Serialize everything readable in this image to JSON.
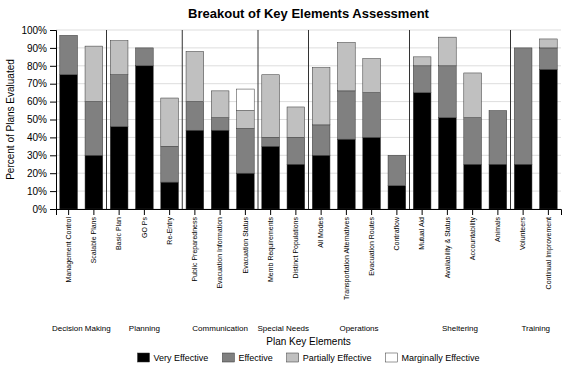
{
  "chart_data": {
    "type": "bar",
    "stacked": true,
    "title": "Breakout of Key Elements Assessment",
    "xlabel": "Plan Key Elements",
    "ylabel": "Percent of Plans Evaluated",
    "categories": [
      "Management Control",
      "Scalable Plans",
      "Basic Plan",
      "GO Ps",
      "Re-Entry",
      "Public Preparedness",
      "Evacuation Information",
      "Evacuation Status",
      "Memb Requirements",
      "Distinct Populations",
      "All Modes",
      "Transportation Alternatives",
      "Evacuation Routes",
      "Contraflow",
      "Mutual Aid",
      "Availability & Status",
      "Accountability",
      "Animals",
      "Volunteers",
      "Continual Improvement"
    ],
    "groups": [
      {
        "label": "Decision Making",
        "size": 2
      },
      {
        "label": "Planning",
        "size": 3
      },
      {
        "label": "Communication",
        "size": 3
      },
      {
        "label": "Special Needs",
        "size": 2
      },
      {
        "label": "Operations",
        "size": 4
      },
      {
        "label": "Sheltering",
        "size": 4
      },
      {
        "label": "Training",
        "size": 2
      }
    ],
    "series": [
      {
        "name": "Very Effective",
        "color": "#000000",
        "values": [
          75,
          30,
          46,
          80,
          15,
          44,
          44,
          20,
          35,
          25,
          30,
          39,
          40,
          13,
          65,
          51,
          25,
          25,
          25,
          78
        ]
      },
      {
        "name": "Effective",
        "color": "#808080",
        "values": [
          22,
          30,
          29,
          10,
          20,
          16,
          7,
          25,
          5,
          15,
          17,
          27,
          25,
          17,
          15,
          29,
          26,
          30,
          65,
          12
        ]
      },
      {
        "name": "Partially Effective",
        "color": "#c0c0c0",
        "values": [
          0,
          31,
          19,
          0,
          27,
          28,
          15,
          10,
          35,
          17,
          32,
          27,
          19,
          0,
          5,
          16,
          25,
          0,
          0,
          5
        ]
      },
      {
        "name": "Marginally Effective",
        "color": "#ffffff",
        "values": [
          0,
          0,
          0,
          0,
          0,
          0,
          0,
          12,
          0,
          0,
          0,
          0,
          0,
          0,
          0,
          0,
          0,
          0,
          0,
          0
        ]
      }
    ],
    "ylim": [
      0,
      100
    ],
    "yticks": [
      {
        "value": 0,
        "label": "0%"
      },
      {
        "value": 10,
        "label": "10%"
      },
      {
        "value": 20,
        "label": "20%"
      },
      {
        "value": 30,
        "label": "30%"
      },
      {
        "value": 40,
        "label": "40%"
      },
      {
        "value": 50,
        "label": "50%"
      },
      {
        "value": 60,
        "label": "60%"
      },
      {
        "value": 70,
        "label": "70%"
      },
      {
        "value": 80,
        "label": "80%"
      },
      {
        "value": 90,
        "label": "90%"
      },
      {
        "value": 100,
        "label": "100%"
      }
    ],
    "grid": true,
    "legend": "bottom"
  }
}
